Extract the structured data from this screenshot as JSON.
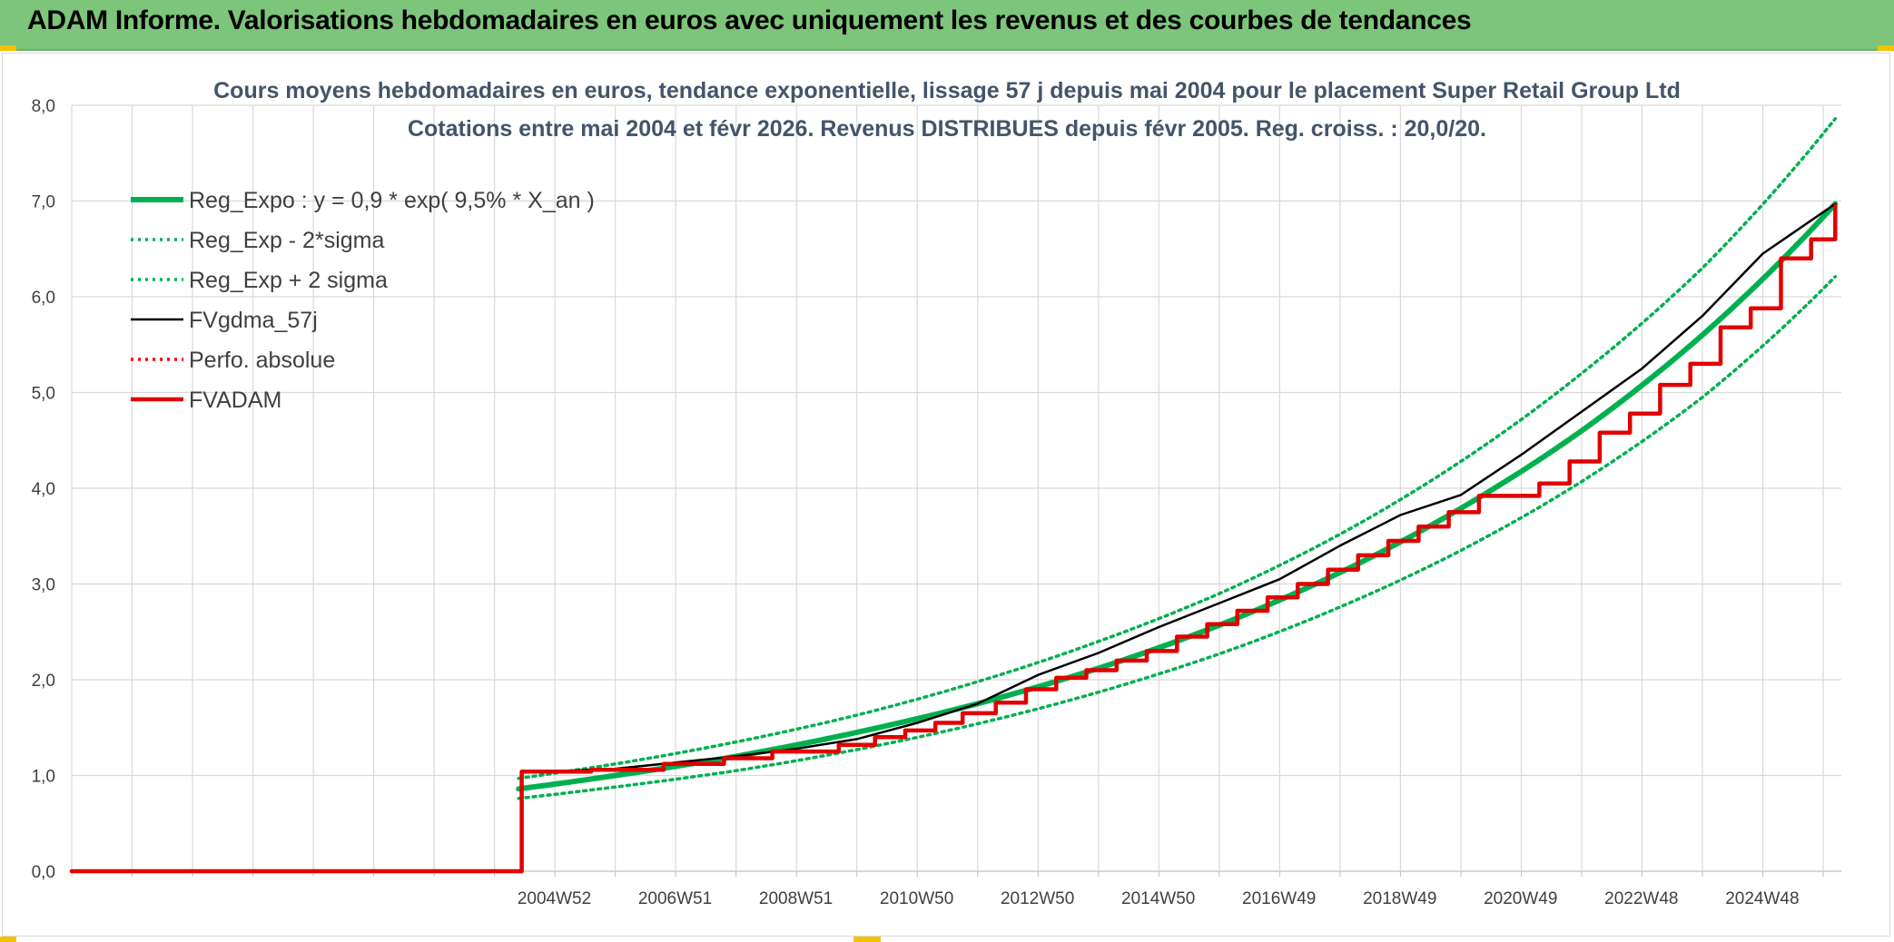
{
  "banner": {
    "title": "ADAM Informe. Valorisations hebdomadaires en euros avec uniquement les revenus et des courbes de tendances",
    "background": "#7dc57b"
  },
  "chart_data": {
    "type": "line",
    "title_line1": "Cours moyens hebdomadaires en euros, tendance exponentielle, lissage 57 j depuis mai 2004 pour le placement Super Retail Group Ltd",
    "title_line2": "Cotations entre mai 2004 et févr 2026. Revenus DISTRIBUES depuis févr 2005. Reg. croiss. : 20,0/20.",
    "xlabel": "",
    "ylabel": "",
    "ylim": [
      0,
      8
    ],
    "yticks": [
      "0,0",
      "1,0",
      "2,0",
      "3,0",
      "4,0",
      "5,0",
      "6,0",
      "7,0",
      "8,0"
    ],
    "x_axis": {
      "start_year": 1997.0,
      "end_year": 2026.3,
      "tick_labels": [
        {
          "label": "2004W52",
          "year": 2004.99
        },
        {
          "label": "2006W51",
          "year": 2006.99
        },
        {
          "label": "2008W51",
          "year": 2008.99
        },
        {
          "label": "2010W50",
          "year": 2010.99
        },
        {
          "label": "2012W50",
          "year": 2012.99
        },
        {
          "label": "2014W50",
          "year": 2014.99
        },
        {
          "label": "2016W49",
          "year": 2016.99
        },
        {
          "label": "2018W49",
          "year": 2018.99
        },
        {
          "label": "2020W49",
          "year": 2020.99
        },
        {
          "label": "2022W48",
          "year": 2022.99
        },
        {
          "label": "2024W48",
          "year": 2024.99
        }
      ],
      "gridline_years": [
        1997.0,
        1998.0,
        1999.0,
        2000.0,
        2001.0,
        2002.0,
        2003.0,
        2004.0,
        2005.0,
        2006.0,
        2007.0,
        2008.0,
        2009.0,
        2010.0,
        2011.0,
        2012.0,
        2013.0,
        2014.0,
        2015.0,
        2016.0,
        2017.0,
        2018.0,
        2019.0,
        2020.0,
        2021.0,
        2022.0,
        2023.0,
        2024.0,
        2025.0,
        2026.0
      ]
    },
    "grid": true,
    "legend_position": "top-left",
    "series": [
      {
        "name": "Reg_Expo : y = 0,9 * exp( 9,5% *  X_an )",
        "color": "#00b050",
        "style": "solid-thick",
        "points": [
          [
            2004.4,
            0.86
          ],
          [
            2006.0,
            1.0
          ],
          [
            2008.0,
            1.2
          ],
          [
            2010.0,
            1.45
          ],
          [
            2012.0,
            1.75
          ],
          [
            2014.0,
            2.12
          ],
          [
            2016.0,
            2.57
          ],
          [
            2018.0,
            3.12
          ],
          [
            2020.0,
            3.79
          ],
          [
            2022.0,
            4.6
          ],
          [
            2024.0,
            5.6
          ],
          [
            2026.2,
            6.97
          ]
        ]
      },
      {
        "name": "Reg_Exp - 2*sigma",
        "color": "#00b050",
        "style": "dotted",
        "points": [
          [
            2004.4,
            0.76
          ],
          [
            2006.0,
            0.88
          ],
          [
            2008.0,
            1.05
          ],
          [
            2010.0,
            1.27
          ],
          [
            2012.0,
            1.54
          ],
          [
            2014.0,
            1.87
          ],
          [
            2016.0,
            2.27
          ],
          [
            2018.0,
            2.76
          ],
          [
            2020.0,
            3.35
          ],
          [
            2022.0,
            4.07
          ],
          [
            2024.0,
            4.95
          ],
          [
            2026.2,
            6.21
          ]
        ]
      },
      {
        "name": "Reg_Exp + 2 sigma",
        "color": "#00b050",
        "style": "dotted",
        "points": [
          [
            2004.4,
            0.97
          ],
          [
            2006.0,
            1.12
          ],
          [
            2008.0,
            1.35
          ],
          [
            2010.0,
            1.63
          ],
          [
            2012.0,
            1.98
          ],
          [
            2014.0,
            2.4
          ],
          [
            2016.0,
            2.9
          ],
          [
            2018.0,
            3.52
          ],
          [
            2020.0,
            4.28
          ],
          [
            2022.0,
            5.2
          ],
          [
            2024.0,
            6.3
          ],
          [
            2026.2,
            7.86
          ]
        ]
      },
      {
        "name": "FVgdma_57j",
        "color": "#000000",
        "style": "solid",
        "points": [
          [
            1997.0,
            0.0
          ],
          [
            2004.45,
            0.0
          ],
          [
            2004.45,
            1.03
          ],
          [
            2006.0,
            1.07
          ],
          [
            2008.0,
            1.2
          ],
          [
            2009.0,
            1.28
          ],
          [
            2010.0,
            1.38
          ],
          [
            2011.0,
            1.55
          ],
          [
            2012.0,
            1.75
          ],
          [
            2013.0,
            2.05
          ],
          [
            2014.0,
            2.28
          ],
          [
            2015.0,
            2.55
          ],
          [
            2016.0,
            2.8
          ],
          [
            2017.0,
            3.05
          ],
          [
            2018.0,
            3.4
          ],
          [
            2019.0,
            3.72
          ],
          [
            2020.0,
            3.93
          ],
          [
            2021.0,
            4.35
          ],
          [
            2022.0,
            4.8
          ],
          [
            2023.0,
            5.25
          ],
          [
            2024.0,
            5.8
          ],
          [
            2025.0,
            6.45
          ],
          [
            2026.2,
            6.97
          ]
        ]
      },
      {
        "name": "Perfo. absolue",
        "color": "#ff0000",
        "style": "dotted",
        "points": []
      },
      {
        "name": "FVADAM",
        "color": "#e00000",
        "style": "step-thick",
        "steps": [
          [
            2004.45,
            1.04
          ],
          [
            2005.6,
            1.06
          ],
          [
            2006.8,
            1.12
          ],
          [
            2007.8,
            1.18
          ],
          [
            2008.6,
            1.25
          ],
          [
            2009.7,
            1.32
          ],
          [
            2010.3,
            1.4
          ],
          [
            2010.8,
            1.47
          ],
          [
            2011.3,
            1.55
          ],
          [
            2011.75,
            1.65
          ],
          [
            2012.3,
            1.76
          ],
          [
            2012.8,
            1.9
          ],
          [
            2013.3,
            2.02
          ],
          [
            2013.8,
            2.1
          ],
          [
            2014.3,
            2.2
          ],
          [
            2014.8,
            2.3
          ],
          [
            2015.3,
            2.45
          ],
          [
            2015.8,
            2.58
          ],
          [
            2016.3,
            2.72
          ],
          [
            2016.8,
            2.86
          ],
          [
            2017.3,
            3.0
          ],
          [
            2017.8,
            3.15
          ],
          [
            2018.3,
            3.3
          ],
          [
            2018.8,
            3.45
          ],
          [
            2019.3,
            3.6
          ],
          [
            2019.8,
            3.75
          ],
          [
            2020.3,
            3.92
          ],
          [
            2021.3,
            4.05
          ],
          [
            2021.8,
            4.28
          ],
          [
            2022.3,
            4.58
          ],
          [
            2022.8,
            4.78
          ],
          [
            2023.3,
            5.08
          ],
          [
            2023.8,
            5.3
          ],
          [
            2024.3,
            5.68
          ],
          [
            2024.8,
            5.88
          ],
          [
            2025.3,
            6.4
          ],
          [
            2025.8,
            6.6
          ],
          [
            2026.2,
            6.95
          ]
        ],
        "start": [
          [
            1997.0,
            0.0
          ],
          [
            2004.45,
            0.0
          ]
        ]
      }
    ]
  }
}
